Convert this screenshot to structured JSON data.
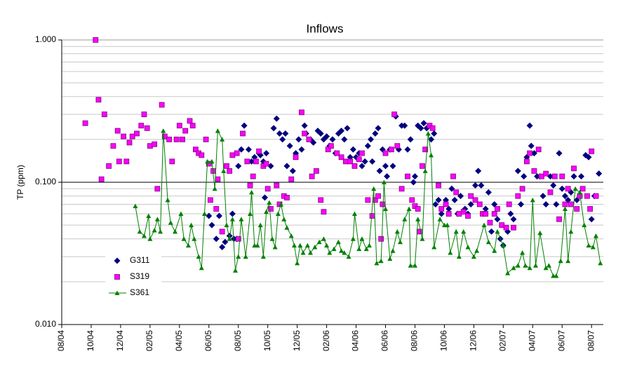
{
  "chart_data": {
    "type": "scatter",
    "title": "Inflows",
    "y_label": "TP (ppm)",
    "log_y": true,
    "grid": true,
    "legend": "lower left",
    "xlim": [
      0,
      36.8
    ],
    "xticks": [
      {
        "value": 0,
        "label": "08/04"
      },
      {
        "value": 2,
        "label": "10/04"
      },
      {
        "value": 4,
        "label": "12/04"
      },
      {
        "value": 6,
        "label": "02/05"
      },
      {
        "value": 8,
        "label": "04/05"
      },
      {
        "value": 10,
        "label": "06/05"
      },
      {
        "value": 12,
        "label": "08/05"
      },
      {
        "value": 14,
        "label": "10/05"
      },
      {
        "value": 16,
        "label": "12/05"
      },
      {
        "value": 18,
        "label": "02/06"
      },
      {
        "value": 20,
        "label": "04/06"
      },
      {
        "value": 22,
        "label": "06/06"
      },
      {
        "value": 24,
        "label": "08/06"
      },
      {
        "value": 26,
        "label": "10/06"
      },
      {
        "value": 28,
        "label": "12/06"
      },
      {
        "value": 30,
        "label": "02/07"
      },
      {
        "value": 32,
        "label": "04/07"
      },
      {
        "value": 34,
        "label": "06/07"
      },
      {
        "value": 36,
        "label": "08/07"
      }
    ],
    "ylim": [
      0.01,
      1
    ],
    "yticks": [
      {
        "value": 0.01,
        "label": "0.010"
      },
      {
        "value": 0.1,
        "label": "0.100"
      },
      {
        "value": 1,
        "label": "1.000"
      }
    ],
    "yminor": [
      0.02,
      0.03,
      0.04,
      0.05,
      0.06,
      0.07,
      0.08,
      0.09,
      0.2,
      0.3,
      0.4,
      0.5,
      0.6,
      0.7,
      0.8,
      0.9
    ],
    "series": [
      {
        "name": "G311",
        "color": "#000080",
        "marker": "diamond",
        "line": false,
        "x": [
          10.0,
          10.2,
          10.5,
          10.7,
          10.9,
          11.1,
          11.4,
          11.6,
          11.7,
          11.9,
          12.0,
          12.2,
          12.4,
          12.7,
          12.9,
          13.1,
          13.4,
          13.5,
          13.7,
          13.8,
          13.9,
          14.2,
          14.4,
          14.6,
          14.8,
          15.0,
          15.2,
          15.3,
          15.5,
          15.7,
          15.9,
          16.1,
          16.3,
          16.5,
          16.6,
          16.9,
          17.1,
          17.4,
          17.6,
          17.8,
          18.0,
          18.2,
          18.4,
          18.6,
          18.8,
          19.0,
          19.2,
          19.4,
          19.6,
          19.8,
          20.0,
          20.2,
          20.4,
          20.6,
          20.8,
          21.0,
          21.1,
          21.3,
          21.5,
          21.6,
          21.8,
          22.0,
          22.1,
          22.3,
          22.5,
          22.7,
          22.9,
          23.1,
          23.3,
          23.5,
          23.7,
          23.9,
          24.0,
          24.2,
          24.4,
          24.6,
          24.8,
          25.1,
          25.3,
          25.4,
          25.6,
          25.8,
          26.1,
          26.3,
          26.5,
          26.7,
          26.9,
          27.1,
          27.4,
          27.6,
          27.8,
          28.1,
          28.3,
          28.5,
          28.8,
          29.0,
          29.2,
          29.4,
          29.6,
          29.8,
          30.0,
          30.3,
          30.5,
          30.7,
          31.0,
          31.2,
          31.4,
          31.6,
          31.8,
          31.9,
          32.1,
          32.3,
          32.5,
          32.7,
          32.9,
          33.2,
          33.4,
          33.6,
          33.8,
          34.0,
          34.2,
          34.4,
          34.6,
          34.8,
          35.0,
          35.2,
          35.3,
          35.6,
          35.8,
          36.0,
          36.2,
          36.5
        ],
        "values": [
          0.058,
          0.05,
          0.04,
          0.058,
          0.035,
          0.038,
          0.042,
          0.06,
          0.04,
          0.04,
          0.13,
          0.17,
          0.25,
          0.17,
          0.14,
          0.15,
          0.16,
          0.155,
          0.14,
          0.078,
          0.16,
          0.13,
          0.24,
          0.28,
          0.22,
          0.2,
          0.22,
          0.13,
          0.18,
          0.12,
          0.16,
          0.2,
          0.17,
          0.25,
          0.22,
          0.2,
          0.19,
          0.23,
          0.22,
          0.2,
          0.21,
          0.18,
          0.2,
          0.16,
          0.22,
          0.23,
          0.2,
          0.24,
          0.15,
          0.17,
          0.15,
          0.16,
          0.13,
          0.14,
          0.18,
          0.2,
          0.14,
          0.22,
          0.24,
          0.12,
          0.17,
          0.13,
          0.11,
          0.17,
          0.13,
          0.29,
          0.17,
          0.25,
          0.25,
          0.17,
          0.2,
          0.1,
          0.11,
          0.25,
          0.24,
          0.26,
          0.24,
          0.2,
          0.22,
          0.07,
          0.075,
          0.06,
          0.075,
          0.065,
          0.09,
          0.075,
          0.06,
          0.08,
          0.065,
          0.06,
          0.07,
          0.095,
          0.12,
          0.095,
          0.065,
          0.085,
          0.045,
          0.07,
          0.055,
          0.04,
          0.036,
          0.045,
          0.06,
          0.055,
          0.12,
          0.07,
          0.11,
          0.15,
          0.25,
          0.18,
          0.16,
          0.11,
          0.11,
          0.08,
          0.07,
          0.11,
          0.095,
          0.07,
          0.16,
          0.09,
          0.08,
          0.075,
          0.085,
          0.11,
          0.075,
          0.08,
          0.11,
          0.155,
          0.15,
          0.055,
          0.08,
          0.115
        ]
      },
      {
        "name": "S319",
        "color": "#ff00ff",
        "marker": "square",
        "line": false,
        "x": [
          1.6,
          2.3,
          2.5,
          2.7,
          2.9,
          3.2,
          3.5,
          3.8,
          3.9,
          4.2,
          4.4,
          4.6,
          4.8,
          5.1,
          5.4,
          5.6,
          5.8,
          6.0,
          6.3,
          6.5,
          6.8,
          7.0,
          7.3,
          7.5,
          7.8,
          8.0,
          8.2,
          8.4,
          8.7,
          8.9,
          9.1,
          9.3,
          9.5,
          9.8,
          10.0,
          10.1,
          10.3,
          10.5,
          10.6,
          10.9,
          11.2,
          11.4,
          11.6,
          11.9,
          12.0,
          12.3,
          12.6,
          12.8,
          13.0,
          13.2,
          13.4,
          13.7,
          13.9,
          14.0,
          14.2,
          14.6,
          14.8,
          15.1,
          15.3,
          15.6,
          15.9,
          16.3,
          16.5,
          16.8,
          17.0,
          17.3,
          17.6,
          17.8,
          18.1,
          18.3,
          18.7,
          19.0,
          19.3,
          19.6,
          19.9,
          20.2,
          20.4,
          20.8,
          21.1,
          21.3,
          21.5,
          21.7,
          21.8,
          22.0,
          22.4,
          22.6,
          22.8,
          23.1,
          23.5,
          23.8,
          24.0,
          24.2,
          24.3,
          24.5,
          24.7,
          25.0,
          25.2,
          25.6,
          25.8,
          26.1,
          26.3,
          26.6,
          26.8,
          27.0,
          27.3,
          27.6,
          27.8,
          28.1,
          28.4,
          28.6,
          28.8,
          29.1,
          29.4,
          29.6,
          29.9,
          30.2,
          30.4,
          30.7,
          31.0,
          31.3,
          31.6,
          31.8,
          32.1,
          32.4,
          32.6,
          32.9,
          33.2,
          33.5,
          33.8,
          34.0,
          34.2,
          34.4,
          34.6,
          34.8,
          35.0,
          35.2,
          35.4,
          35.7,
          35.9,
          36.0,
          36.3
        ],
        "values": [
          0.26,
          1.0,
          0.38,
          0.105,
          0.3,
          0.13,
          0.18,
          0.23,
          0.14,
          0.21,
          0.14,
          0.19,
          0.21,
          0.22,
          0.25,
          0.3,
          0.24,
          0.18,
          0.185,
          0.09,
          0.35,
          0.21,
          0.2,
          0.14,
          0.2,
          0.25,
          0.2,
          0.23,
          0.27,
          0.25,
          0.17,
          0.16,
          0.155,
          0.2,
          0.135,
          0.075,
          0.12,
          0.065,
          0.105,
          0.045,
          0.13,
          0.12,
          0.155,
          0.16,
          0.04,
          0.22,
          0.14,
          0.095,
          0.11,
          0.14,
          0.165,
          0.13,
          0.135,
          0.09,
          0.065,
          0.095,
          0.07,
          0.08,
          0.078,
          0.105,
          0.15,
          0.31,
          0.22,
          0.2,
          0.11,
          0.12,
          0.075,
          0.062,
          0.17,
          0.18,
          0.16,
          0.15,
          0.14,
          0.14,
          0.13,
          0.145,
          0.16,
          0.075,
          0.058,
          0.075,
          0.08,
          0.04,
          0.07,
          0.16,
          0.17,
          0.3,
          0.18,
          0.09,
          0.11,
          0.075,
          0.068,
          0.065,
          0.045,
          0.13,
          0.17,
          0.25,
          0.24,
          0.095,
          0.065,
          0.07,
          0.06,
          0.11,
          0.085,
          0.06,
          0.062,
          0.058,
          0.08,
          0.075,
          0.07,
          0.06,
          0.06,
          0.052,
          0.06,
          0.065,
          0.05,
          0.048,
          0.07,
          0.048,
          0.08,
          0.09,
          0.14,
          0.16,
          0.12,
          0.17,
          0.11,
          0.115,
          0.085,
          0.11,
          0.055,
          0.11,
          0.07,
          0.09,
          0.07,
          0.125,
          0.065,
          0.08,
          0.09,
          0.08,
          0.065,
          0.165,
          0.08
        ]
      },
      {
        "name": "S361",
        "color": "#008000",
        "marker": "triangle",
        "line": true,
        "x": [
          5.0,
          5.3,
          5.6,
          5.9,
          6.0,
          6.3,
          6.5,
          6.7,
          6.9,
          7.2,
          7.4,
          7.7,
          8.1,
          8.3,
          8.6,
          8.8,
          9.0,
          9.3,
          9.5,
          9.7,
          9.9,
          10.2,
          10.4,
          10.6,
          10.9,
          11.0,
          11.2,
          11.4,
          11.6,
          11.8,
          12.0,
          12.2,
          12.5,
          12.8,
          12.9,
          13.1,
          13.3,
          13.5,
          13.7,
          13.9,
          14.1,
          14.3,
          14.5,
          14.7,
          14.9,
          15.1,
          15.3,
          15.6,
          15.8,
          16.0,
          16.2,
          16.4,
          16.7,
          16.9,
          17.2,
          17.5,
          17.8,
          18.0,
          18.2,
          18.5,
          18.8,
          19.0,
          19.2,
          19.5,
          19.8,
          19.9,
          20.2,
          20.4,
          20.7,
          20.9,
          21.2,
          21.4,
          21.7,
          21.9,
          22.0,
          22.3,
          22.5,
          22.8,
          23.0,
          23.3,
          23.6,
          23.7,
          24.0,
          24.2,
          24.5,
          24.7,
          24.9,
          25.1,
          25.3,
          25.7,
          26.0,
          26.2,
          26.4,
          26.8,
          27.0,
          27.3,
          27.6,
          28.0,
          28.2,
          28.7,
          29.0,
          29.4,
          29.6,
          30.0,
          30.3,
          30.7,
          31.0,
          31.3,
          31.5,
          31.8,
          32.0,
          32.2,
          32.5,
          32.9,
          33.1,
          33.4,
          33.6,
          33.9,
          34.2,
          34.4,
          34.6,
          34.9,
          35.2,
          35.5,
          35.8,
          36.1,
          36.3,
          36.6
        ],
        "values": [
          0.068,
          0.045,
          0.042,
          0.058,
          0.04,
          0.046,
          0.055,
          0.045,
          0.23,
          0.075,
          0.052,
          0.045,
          0.06,
          0.04,
          0.036,
          0.05,
          0.04,
          0.03,
          0.025,
          0.06,
          0.14,
          0.14,
          0.09,
          0.23,
          0.2,
          0.12,
          0.05,
          0.04,
          0.055,
          0.024,
          0.03,
          0.055,
          0.03,
          0.06,
          0.085,
          0.036,
          0.036,
          0.05,
          0.03,
          0.062,
          0.072,
          0.04,
          0.035,
          0.06,
          0.07,
          0.055,
          0.048,
          0.042,
          0.036,
          0.027,
          0.036,
          0.032,
          0.036,
          0.032,
          0.035,
          0.038,
          0.04,
          0.036,
          0.032,
          0.034,
          0.038,
          0.033,
          0.032,
          0.03,
          0.04,
          0.06,
          0.034,
          0.04,
          0.034,
          0.036,
          0.09,
          0.027,
          0.028,
          0.1,
          0.065,
          0.029,
          0.033,
          0.045,
          0.038,
          0.055,
          0.065,
          0.026,
          0.026,
          0.055,
          0.04,
          0.12,
          0.22,
          0.155,
          0.035,
          0.055,
          0.05,
          0.05,
          0.032,
          0.045,
          0.03,
          0.045,
          0.035,
          0.03,
          0.033,
          0.05,
          0.038,
          0.033,
          0.045,
          0.036,
          0.023,
          0.025,
          0.026,
          0.032,
          0.026,
          0.025,
          0.075,
          0.026,
          0.044,
          0.025,
          0.026,
          0.022,
          0.022,
          0.028,
          0.065,
          0.028,
          0.045,
          0.09,
          0.085,
          0.05,
          0.036,
          0.035,
          0.042,
          0.027
        ]
      }
    ]
  }
}
